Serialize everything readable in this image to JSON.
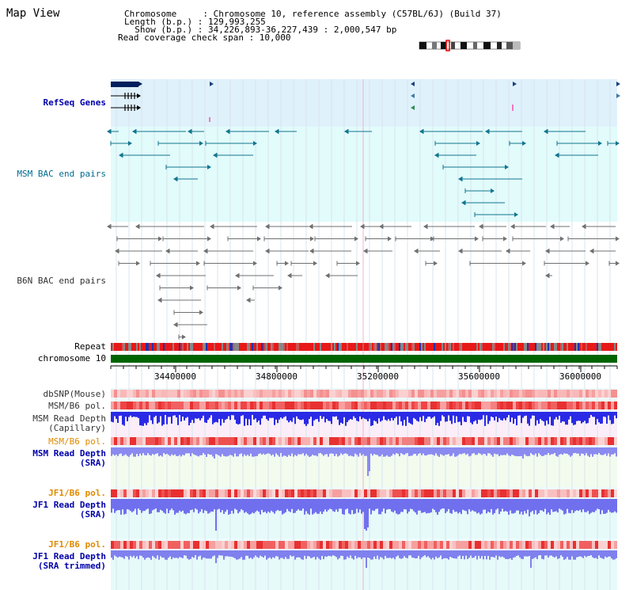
{
  "page_title": "Map View",
  "info": {
    "line1": "Chromosome     : Chromosome 10, reference assembly (C57BL/6J) (Build 37)",
    "line2": "Length (b.p.) : 129,993,255",
    "line3": "  Show (b.p.) : 34,226,893-36,227,439 : 2,000,547 bp",
    "line4": "Read coverage check span : 10,000"
  },
  "tracks": {
    "refseq": "RefSeq Genes",
    "msm_bac": "MSM BAC end pairs",
    "b6n_bac": "B6N BAC end pairs",
    "repeat": "Repeat",
    "chromosome": "chromosome 10",
    "dbsnp": "dbSNP(Mouse)",
    "msm_b6_pol_1": "MSM/B6 pol.",
    "msm_read_depth_cap_1": "MSM Read Depth",
    "msm_read_depth_cap_2": "(Capillary)",
    "msm_b6_pol_2": "MSM/B6 pol.",
    "msm_read_depth_sra_1": "MSM Read Depth",
    "msm_read_depth_sra_2": "(SRA)",
    "jf1_b6_pol_1": "JF1/B6 pol.",
    "jf1_read_depth_sra_1": "JF1 Read Depth",
    "jf1_read_depth_sra_2": "(SRA)",
    "jf1_b6_pol_2": "JF1/B6 pol.",
    "jf1_read_depth_trim_1": "JF1 Read Depth",
    "jf1_read_depth_trim_2": "(SRA trimmed)"
  },
  "axis_ticks": [
    "34400000",
    "34800000",
    "35200000",
    "35600000",
    "36000000"
  ],
  "colors": {
    "refseq_bg": "#dff1fb",
    "msm_bg": "#e2fbfb",
    "lower_bg": "#e9fbfb",
    "msm_label": "#006b8f",
    "b6n_label": "#333333",
    "blue_label": "#0000aa",
    "orange_label": "#e08a00",
    "chromosome_bar": "#006400",
    "depth_strong": "#2222ee",
    "depth_light": "#8888ee"
  }
}
